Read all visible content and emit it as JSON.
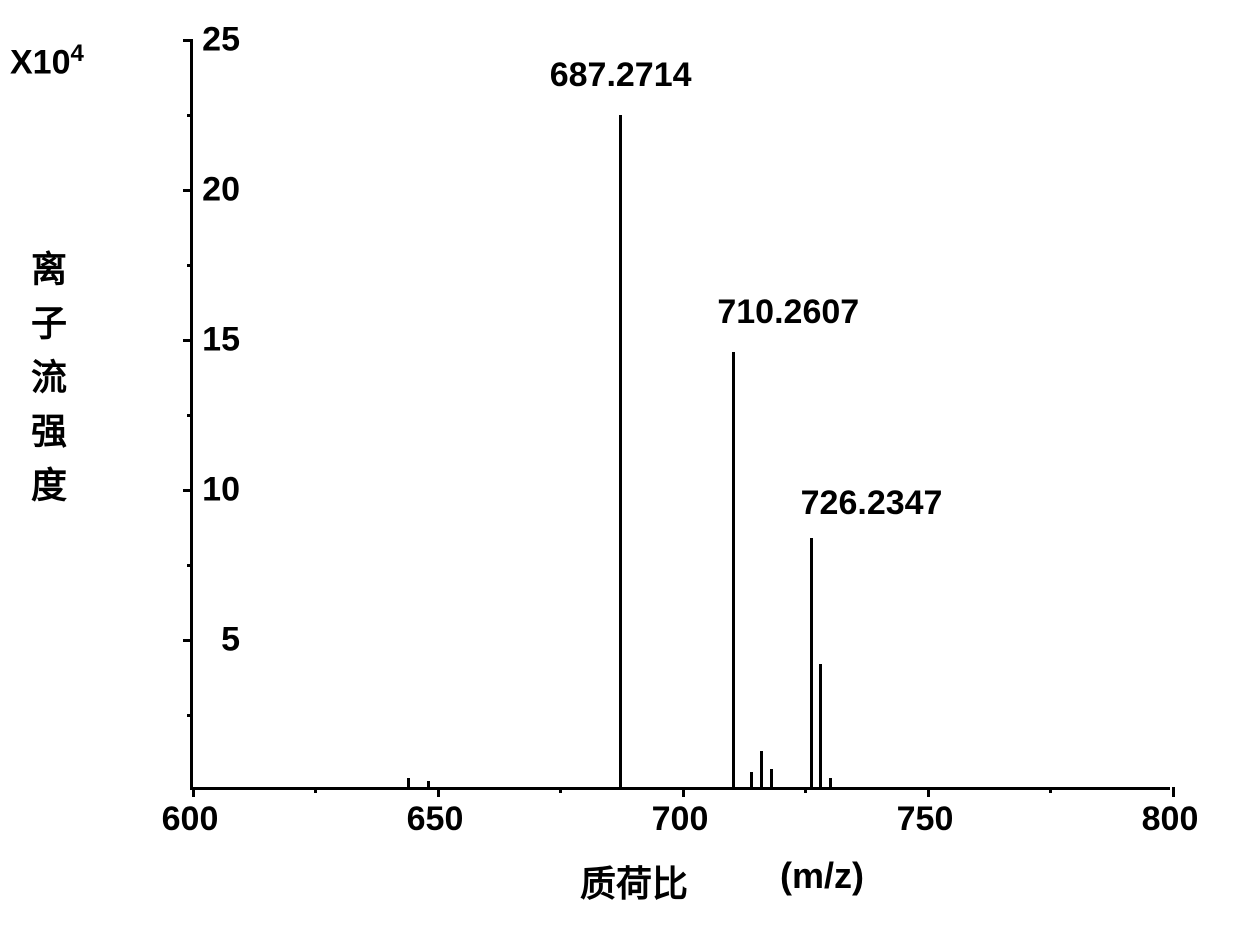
{
  "spectrum": {
    "type": "mass-spectrum",
    "y_multiplier": "X10⁴",
    "y_multiplier_plain": "X10",
    "y_multiplier_exp": "4",
    "y_label": "离子流强度",
    "x_label_cn": "质荷比",
    "x_label_unit": "(m/z)",
    "xlim": [
      600,
      800
    ],
    "ylim": [
      0,
      25
    ],
    "x_ticks": [
      600,
      650,
      700,
      750,
      800
    ],
    "x_minor_ticks": [
      625,
      675,
      725,
      775
    ],
    "y_ticks": [
      5,
      10,
      15,
      20,
      25
    ],
    "y_minor_ticks": [
      2.5,
      7.5,
      12.5,
      17.5,
      22.5
    ],
    "peaks": [
      {
        "mz": 687.2714,
        "intensity": 22.4,
        "label": "687.2714",
        "label_offset_x": 0,
        "label_offset_y": -15
      },
      {
        "mz": 710.2607,
        "intensity": 14.5,
        "label": "710.2607",
        "label_offset_x": 55,
        "label_offset_y": -15
      },
      {
        "mz": 726.2347,
        "intensity": 8.3,
        "label": "726.2347",
        "label_offset_x": 60,
        "label_offset_y": -10
      },
      {
        "mz": 644,
        "intensity": 0.3,
        "label": "",
        "label_offset_x": 0,
        "label_offset_y": 0
      },
      {
        "mz": 648,
        "intensity": 0.2,
        "label": "",
        "label_offset_x": 0,
        "label_offset_y": 0
      },
      {
        "mz": 714,
        "intensity": 0.5,
        "label": "",
        "label_offset_x": 0,
        "label_offset_y": 0
      },
      {
        "mz": 716,
        "intensity": 1.2,
        "label": "",
        "label_offset_x": 0,
        "label_offset_y": 0
      },
      {
        "mz": 718,
        "intensity": 0.6,
        "label": "",
        "label_offset_x": 0,
        "label_offset_y": 0
      },
      {
        "mz": 728,
        "intensity": 4.1,
        "label": "",
        "label_offset_x": 0,
        "label_offset_y": 0
      },
      {
        "mz": 730,
        "intensity": 0.3,
        "label": "",
        "label_offset_x": 0,
        "label_offset_y": 0
      }
    ],
    "background_color": "#ffffff",
    "axis_color": "#000000",
    "peak_color": "#000000",
    "text_color": "#000000",
    "tick_fontsize": 34,
    "label_fontsize": 36,
    "peak_label_fontsize": 34,
    "axis_line_width": 3,
    "peak_line_width": 3
  }
}
